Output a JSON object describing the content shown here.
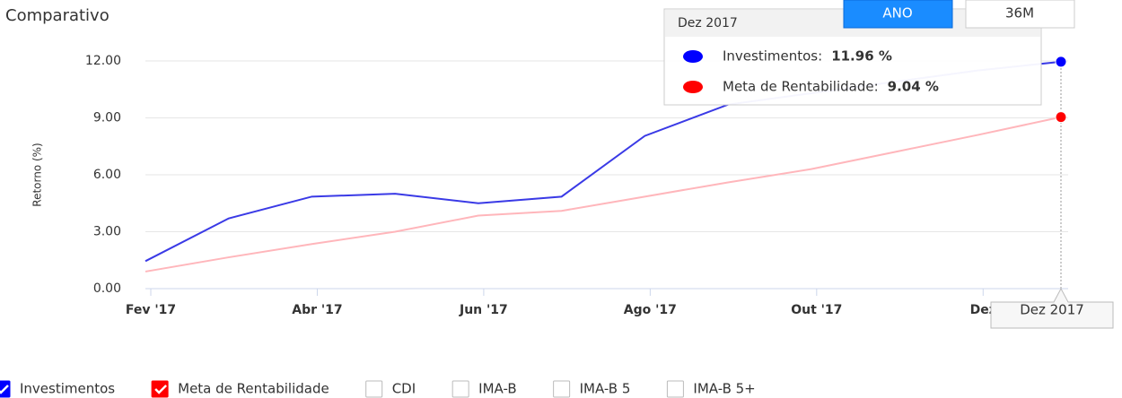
{
  "chart_data": {
    "type": "line",
    "title": "Comparativo",
    "y_label": "Retorno (%)",
    "buttons": [
      "ANO",
      "36M"
    ],
    "categories": [
      "Fev '17",
      null,
      "Abr '17",
      null,
      "Jun '17",
      null,
      "Ago '17",
      null,
      "Out '17",
      null,
      "Dez",
      null
    ],
    "series": [
      {
        "name": "Investimentos",
        "color": "#3a3ae6",
        "marker_color": "#0000ff",
        "values": [
          1.45,
          3.7,
          4.85,
          5.0,
          4.5,
          4.85,
          8.05,
          9.7,
          10.3,
          10.9,
          11.5,
          11.96
        ]
      },
      {
        "name": "Meta de Rentabilidade",
        "color": "#ffb6bb",
        "marker_color": "#ff0000",
        "values": [
          0.9,
          1.65,
          2.35,
          3.0,
          3.85,
          4.1,
          4.85,
          5.6,
          6.3,
          7.2,
          8.1,
          9.04
        ]
      }
    ],
    "inactive_series": [
      "CDI",
      "IMA-B",
      "IMA-B 5",
      "IMA-B 5+"
    ],
    "ylim": [
      0,
      12
    ],
    "yticks": [
      {
        "value": 0,
        "label": "0.00"
      },
      {
        "value": 3,
        "label": "3.00"
      },
      {
        "value": 6,
        "label": "6.00"
      },
      {
        "value": 9,
        "label": "9.00"
      },
      {
        "value": 12,
        "label": "12.00"
      }
    ],
    "grid": true,
    "tooltip": {
      "title": "Dez 2017",
      "items": [
        {
          "label": "Investimentos:",
          "value": "11.96 %"
        },
        {
          "label": "Meta de Rentabilidade:",
          "value": "9.04 %"
        }
      ]
    },
    "hover_label": "Dez 2017"
  }
}
